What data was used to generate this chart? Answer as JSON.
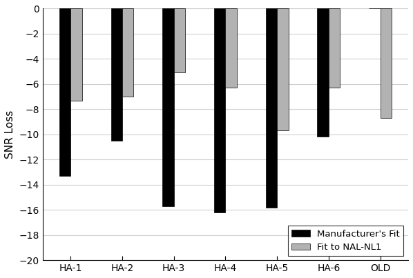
{
  "categories": [
    "HA-1",
    "HA-2",
    "HA-3",
    "HA-4",
    "HA-5",
    "HA-6",
    "OLD"
  ],
  "manufacturer_fit": [
    -13.3,
    -10.5,
    -15.7,
    -16.2,
    -15.8,
    -10.2,
    0
  ],
  "nal_nl1_fit": [
    -7.3,
    -7.0,
    -5.1,
    -6.3,
    -9.7,
    -6.3,
    -8.7
  ],
  "bar_color_black": "#000000",
  "bar_color_gray": "#b2b2b2",
  "ylabel": "SNR Loss",
  "ylim": [
    -20,
    0
  ],
  "yticks": [
    0,
    -2,
    -4,
    -6,
    -8,
    -10,
    -12,
    -14,
    -16,
    -18,
    -20
  ],
  "legend_labels": [
    "Manufacturer's Fit",
    "Fit to NAL-NL1"
  ],
  "bar_width": 0.22,
  "background_color": "#ffffff",
  "edge_color": "#000000",
  "grid_color": "#d0d0d0"
}
